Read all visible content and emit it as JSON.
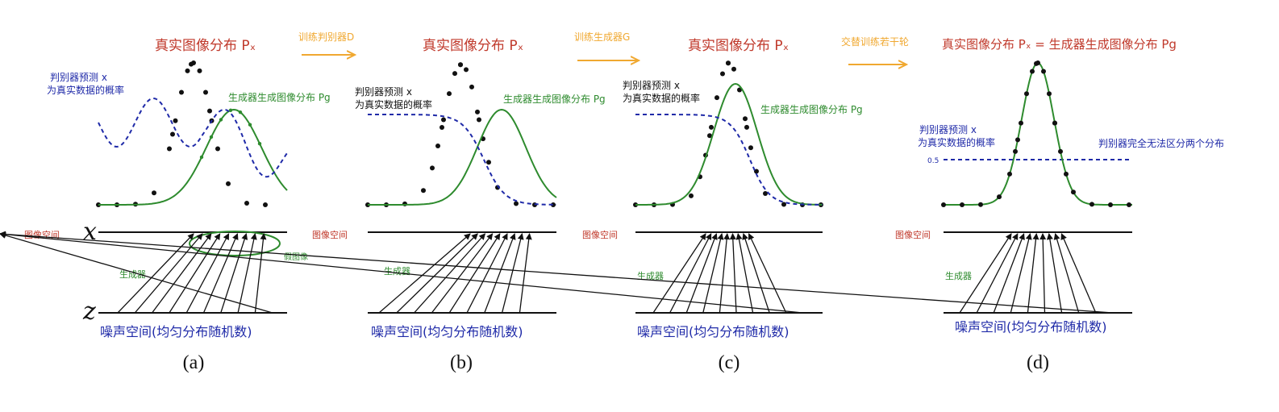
{
  "colors": {
    "real": "#c0392b",
    "generator": "#2e8b2e",
    "discriminator": "#1f2aa8",
    "arrow": "#f0a830",
    "ink": "#111111"
  },
  "axis_letters": {
    "x": "x",
    "z": "z"
  },
  "transitions": [
    {
      "label": "训练判别器D"
    },
    {
      "label": "训练生成器G"
    },
    {
      "label": "交替训练若干轮"
    }
  ],
  "panels": [
    {
      "caption": "(a)",
      "real_label": "真实图像分布 Pₓ",
      "disc_label_1": "判别器预测 x",
      "disc_label_2": "为真实数据的概率",
      "gen_label": "生成器生成图像分布 Pg",
      "image_space": "图像空间",
      "generator": "生成器",
      "fake_image": "假图像",
      "noise_space": "噪声空间(均匀分布随机数)"
    },
    {
      "caption": "(b)",
      "real_label": "真实图像分布 Pₓ",
      "disc_label_1": "判别器预测 x",
      "disc_label_2": "为真实数据的概率",
      "gen_label": "生成器生成图像分布 Pg",
      "image_space": "图像空间",
      "generator": "生成器",
      "noise_space": "噪声空间(均匀分布随机数)"
    },
    {
      "caption": "(c)",
      "real_label": "真实图像分布 Pₓ",
      "disc_label_1": "判别器预测 x",
      "disc_label_2": "为真实数据的概率",
      "gen_label": "生成器生成图像分布 Pg",
      "image_space": "图像空间",
      "generator": "生成器",
      "noise_space": "噪声空间(均匀分布随机数)"
    },
    {
      "caption": "(d)",
      "real_label": "真实图像分布 Pₓ = 生成器生成图像分布 Pg",
      "disc_label_1": "判别器预测 x",
      "disc_label_2": "为真实数据的概率",
      "disc_half": "0.5",
      "disc_note": "判别器完全无法区分两个分布",
      "image_space": "图像空间",
      "generator": "生成器",
      "noise_space": "噪声空间(均匀分布随机数)"
    }
  ]
}
